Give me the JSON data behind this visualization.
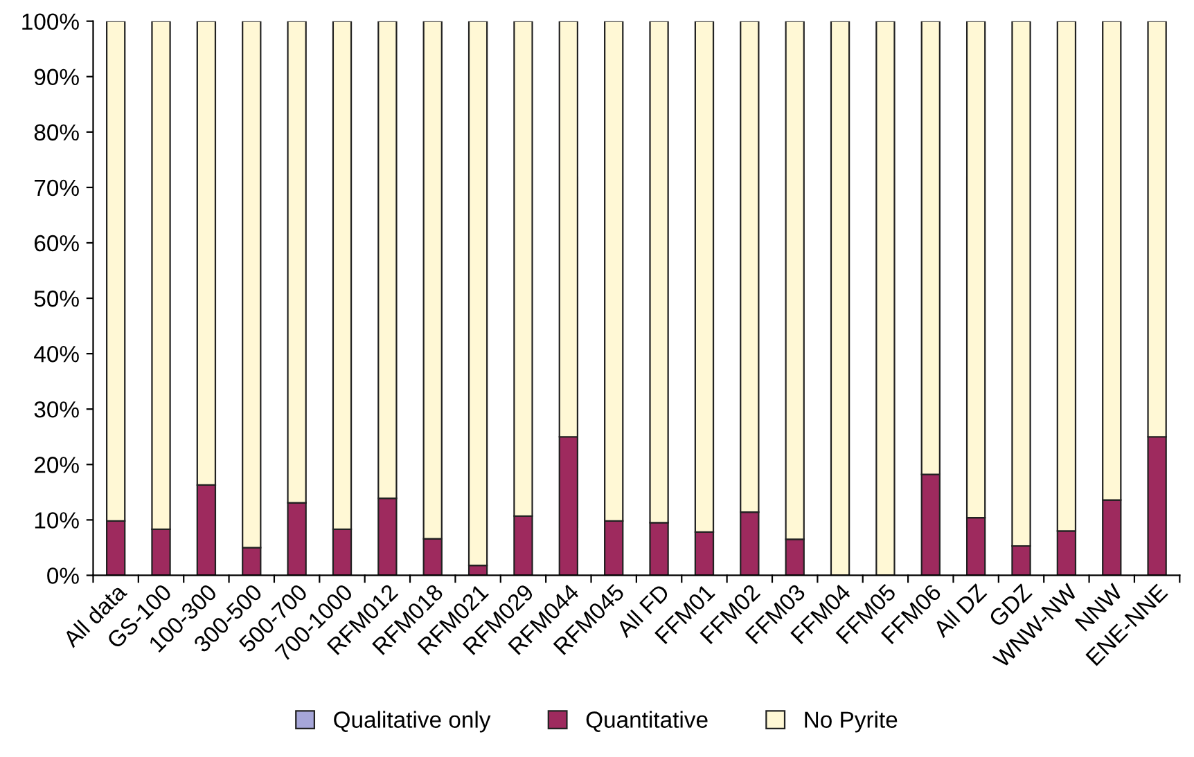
{
  "chart_data": {
    "type": "bar",
    "stacked": true,
    "categories": [
      "All data",
      "GS-100",
      "100-300",
      "300-500",
      "500-700",
      "700-1000",
      "RFM012",
      "RFM018",
      "RFM021",
      "RFM029",
      "RFM044",
      "RFM045",
      "All FD",
      "FFM01",
      "FFM02",
      "FFM03",
      "FFM04",
      "FFM05",
      "FFM06",
      "All DZ",
      "GDZ",
      "WNW-NW",
      "NNW",
      "ENE-NNE"
    ],
    "series": [
      {
        "name": "Qualitative only",
        "color": "#a6a6d8",
        "values": [
          0,
          0,
          0,
          0,
          0,
          0,
          0,
          0,
          0,
          0,
          0,
          0,
          0,
          0,
          0,
          0,
          0,
          0,
          0,
          0,
          0,
          0,
          0,
          0
        ]
      },
      {
        "name": "Quantitative",
        "color": "#9e2a5e",
        "values": [
          9.8,
          8.3,
          16.3,
          5,
          13.1,
          8.3,
          13.9,
          6.6,
          1.8,
          10.7,
          25,
          9.8,
          9.5,
          7.8,
          11.4,
          6.5,
          0,
          0,
          18.2,
          10.4,
          5.3,
          8,
          13.6,
          25
        ]
      },
      {
        "name": "No Pyrite",
        "color": "#fff8d5",
        "values": [
          90.2,
          91.7,
          83.7,
          95,
          86.9,
          91.7,
          86.1,
          93.4,
          98.2,
          89.3,
          75,
          90.2,
          90.5,
          92.2,
          88.6,
          93.5,
          100,
          100,
          81.8,
          89.6,
          94.7,
          92,
          86.4,
          75
        ]
      }
    ],
    "ylim": [
      0,
      100
    ],
    "yticks": [
      {
        "value": 0,
        "label": "0%"
      },
      {
        "value": 10,
        "label": "10%"
      },
      {
        "value": 20,
        "label": "20%"
      },
      {
        "value": 30,
        "label": "30%"
      },
      {
        "value": 40,
        "label": "40%"
      },
      {
        "value": 50,
        "label": "50%"
      },
      {
        "value": 60,
        "label": "60%"
      },
      {
        "value": 70,
        "label": "70%"
      },
      {
        "value": 80,
        "label": "80%"
      },
      {
        "value": 90,
        "label": "90%"
      },
      {
        "value": 100,
        "label": "100%"
      }
    ],
    "grid": false,
    "legend": "bottom"
  }
}
